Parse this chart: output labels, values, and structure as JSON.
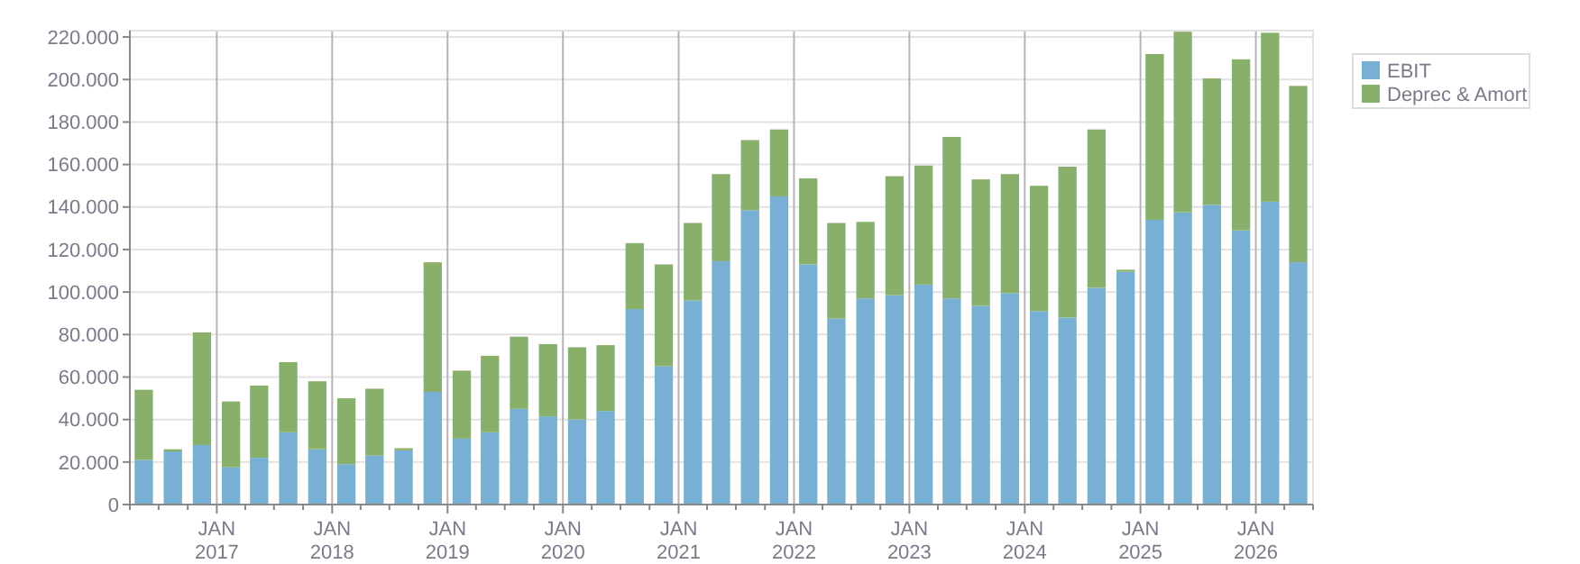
{
  "chart_data": {
    "type": "bar",
    "stacked": true,
    "x": [
      "2016-05-15",
      "2016-08-15",
      "2016-11-15",
      "2017-02-15",
      "2017-05-15",
      "2017-08-15",
      "2017-11-15",
      "2018-02-15",
      "2018-05-15",
      "2018-08-15",
      "2018-11-15",
      "2019-02-15",
      "2019-05-15",
      "2019-08-15",
      "2019-11-15",
      "2020-02-15",
      "2020-05-15",
      "2020-08-15",
      "2020-11-15",
      "2021-02-15",
      "2021-05-15",
      "2021-08-15",
      "2021-11-15",
      "2022-02-15",
      "2022-05-15",
      "2022-08-15",
      "2022-11-15",
      "2023-02-15",
      "2023-05-15",
      "2023-08-15",
      "2023-11-15",
      "2024-02-15",
      "2024-05-15",
      "2024-08-15",
      "2024-11-15",
      "2025-02-15",
      "2025-05-15",
      "2025-08-15",
      "2025-11-15",
      "2026-02-15",
      "2026-05-15"
    ],
    "series": [
      {
        "name": "EBIT",
        "color": "#77b0d4",
        "values": [
          21000,
          25000,
          28000,
          17500,
          22000,
          34000,
          26000,
          19000,
          23000,
          25500,
          53000,
          31000,
          34000,
          45000,
          41500,
          40000,
          44000,
          92000,
          65000,
          96000,
          114500,
          138500,
          145000,
          113000,
          87500,
          97000,
          98500,
          103500,
          97000,
          93500,
          99500,
          91000,
          88000,
          102000,
          109500,
          134000,
          137500,
          141000,
          129000,
          142500,
          114000
        ]
      },
      {
        "name": "Deprec & Amort",
        "color": "#88b06a",
        "values": [
          33000,
          1000,
          53000,
          31000,
          34000,
          33000,
          32000,
          31000,
          31500,
          1000,
          61000,
          32000,
          36000,
          34000,
          34000,
          34000,
          31000,
          31000,
          48000,
          36500,
          41000,
          33000,
          31500,
          40500,
          45000,
          36000,
          56000,
          56000,
          76000,
          59500,
          56000,
          59000,
          71000,
          74500,
          1000,
          78000,
          85000,
          59500,
          80500,
          79500,
          83000
        ]
      }
    ],
    "xlim": [
      "2016-04-01",
      "2026-07-01"
    ],
    "xticks": [
      {
        "value": "2016-04-01",
        "label": null
      },
      {
        "value": "2016-07-01",
        "label": null
      },
      {
        "value": "2016-10-01",
        "label": null
      },
      {
        "value": "2017-01-01",
        "label": "JAN 2017"
      },
      {
        "value": "2017-04-01",
        "label": null
      },
      {
        "value": "2017-07-01",
        "label": null
      },
      {
        "value": "2017-10-01",
        "label": null
      },
      {
        "value": "2018-01-01",
        "label": "JAN 2018"
      },
      {
        "value": "2018-04-01",
        "label": null
      },
      {
        "value": "2018-07-01",
        "label": null
      },
      {
        "value": "2018-10-01",
        "label": null
      },
      {
        "value": "2019-01-01",
        "label": "JAN 2019"
      },
      {
        "value": "2019-04-01",
        "label": null
      },
      {
        "value": "2019-07-01",
        "label": null
      },
      {
        "value": "2019-10-01",
        "label": null
      },
      {
        "value": "2020-01-01",
        "label": "JAN 2020"
      },
      {
        "value": "2020-04-01",
        "label": null
      },
      {
        "value": "2020-07-01",
        "label": null
      },
      {
        "value": "2020-10-01",
        "label": null
      },
      {
        "value": "2021-01-01",
        "label": "JAN 2021"
      },
      {
        "value": "2021-04-01",
        "label": null
      },
      {
        "value": "2021-07-01",
        "label": null
      },
      {
        "value": "2021-10-01",
        "label": null
      },
      {
        "value": "2022-01-01",
        "label": "JAN 2022"
      },
      {
        "value": "2022-04-01",
        "label": null
      },
      {
        "value": "2022-07-01",
        "label": null
      },
      {
        "value": "2022-10-01",
        "label": null
      },
      {
        "value": "2023-01-01",
        "label": "JAN 2023"
      },
      {
        "value": "2023-04-01",
        "label": null
      },
      {
        "value": "2023-07-01",
        "label": null
      },
      {
        "value": "2023-10-01",
        "label": null
      },
      {
        "value": "2024-01-01",
        "label": "JAN 2024"
      },
      {
        "value": "2024-04-01",
        "label": null
      },
      {
        "value": "2024-07-01",
        "label": null
      },
      {
        "value": "2024-10-01",
        "label": null
      },
      {
        "value": "2025-01-01",
        "label": "JAN 2025"
      },
      {
        "value": "2025-04-01",
        "label": null
      },
      {
        "value": "2025-07-01",
        "label": null
      },
      {
        "value": "2025-10-01",
        "label": null
      },
      {
        "value": "2026-01-01",
        "label": "JAN 2026"
      },
      {
        "value": "2026-04-01",
        "label": null
      },
      {
        "value": "2026-07-01",
        "label": null
      }
    ],
    "ylim": [
      0,
      223000
    ],
    "yticks": [
      {
        "value": 0,
        "label": "0"
      },
      {
        "value": 20000,
        "label": "20.000"
      },
      {
        "value": 40000,
        "label": "40.000"
      },
      {
        "value": 60000,
        "label": "60.000"
      },
      {
        "value": 80000,
        "label": "80.000"
      },
      {
        "value": 100000,
        "label": "100.000"
      },
      {
        "value": 120000,
        "label": "120.000"
      },
      {
        "value": 140000,
        "label": "140.000"
      },
      {
        "value": 160000,
        "label": "160.000"
      },
      {
        "value": 180000,
        "label": "180.000"
      },
      {
        "value": 200000,
        "label": "200.000"
      },
      {
        "value": 220000,
        "label": "220.000"
      }
    ],
    "grid": true,
    "legend": "top right"
  }
}
